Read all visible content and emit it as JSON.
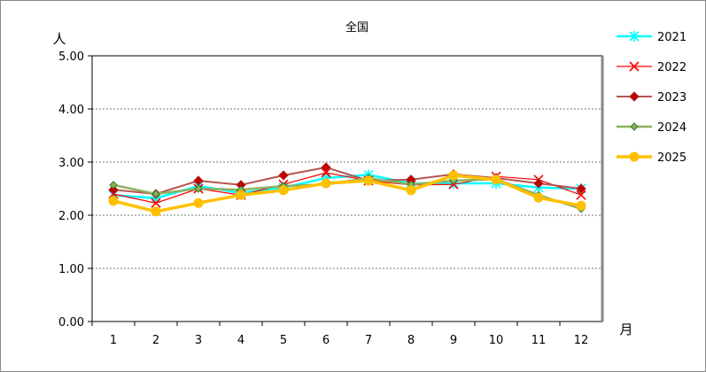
{
  "chart_data": {
    "type": "line",
    "title": "全国",
    "ylabel": "人",
    "xlabel": "月",
    "categories": [
      "1",
      "2",
      "3",
      "4",
      "5",
      "6",
      "7",
      "8",
      "9",
      "10",
      "11",
      "12"
    ],
    "ylim": [
      0,
      5
    ],
    "yticks": [
      "0.00",
      "1.00",
      "2.00",
      "3.00",
      "4.00",
      "5.00"
    ],
    "grid": true,
    "legend": "right",
    "series": [
      {
        "name": "2021",
        "color": "#00FFFF",
        "marker": "asterisk",
        "values": [
          2.38,
          2.32,
          2.55,
          2.42,
          2.52,
          2.7,
          2.76,
          2.6,
          2.6,
          2.6,
          2.52,
          2.5
        ]
      },
      {
        "name": "2022",
        "color": "#FF0000",
        "marker": "x",
        "values": [
          2.4,
          2.23,
          2.5,
          2.38,
          2.58,
          2.8,
          2.65,
          2.57,
          2.58,
          2.73,
          2.67,
          2.38
        ]
      },
      {
        "name": "2023",
        "color": "#B22222",
        "marker": "diamond",
        "values": [
          2.48,
          2.4,
          2.65,
          2.57,
          2.75,
          2.9,
          2.65,
          2.67,
          2.77,
          2.7,
          2.6,
          2.5
        ]
      },
      {
        "name": "2024",
        "color": "#7CA040",
        "marker": "diamond-small",
        "values": [
          2.57,
          2.4,
          2.5,
          2.48,
          2.55,
          2.58,
          2.7,
          2.58,
          2.65,
          2.68,
          2.38,
          2.12
        ]
      },
      {
        "name": "2025",
        "color": "#FFC000",
        "marker": "circle",
        "values": [
          2.27,
          2.07,
          2.23,
          2.38,
          2.47,
          2.6,
          2.65,
          2.47,
          2.75,
          2.67,
          2.33,
          2.18
        ]
      }
    ]
  }
}
